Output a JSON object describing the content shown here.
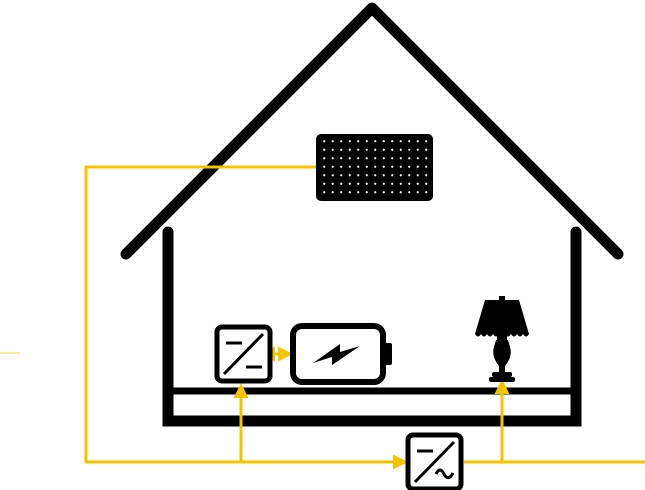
{
  "diagram": {
    "components": [
      {
        "id": "solar-panel",
        "icon": "solar-panel-icon"
      },
      {
        "id": "dc-dc-converter",
        "icon": "dc-dc-converter-icon"
      },
      {
        "id": "battery",
        "icon": "battery-icon"
      },
      {
        "id": "lamp",
        "icon": "lamp-icon"
      },
      {
        "id": "dc-ac-inverter",
        "icon": "inverter-icon"
      },
      {
        "id": "house",
        "icon": "house-outline-icon"
      }
    ],
    "connections": [
      {
        "from": "solar-panel",
        "to": "dc-ac-inverter"
      },
      {
        "from": "dc-dc-converter",
        "to": "battery",
        "bidirectional": true
      },
      {
        "from": "dc-ac-inverter",
        "to": "dc-dc-converter"
      },
      {
        "from": "dc-ac-inverter",
        "to": "lamp"
      },
      {
        "from": "dc-ac-inverter",
        "to": "grid"
      }
    ],
    "colors": {
      "line": "#f5c400",
      "structure": "#000000",
      "background": "#ffffff"
    }
  }
}
